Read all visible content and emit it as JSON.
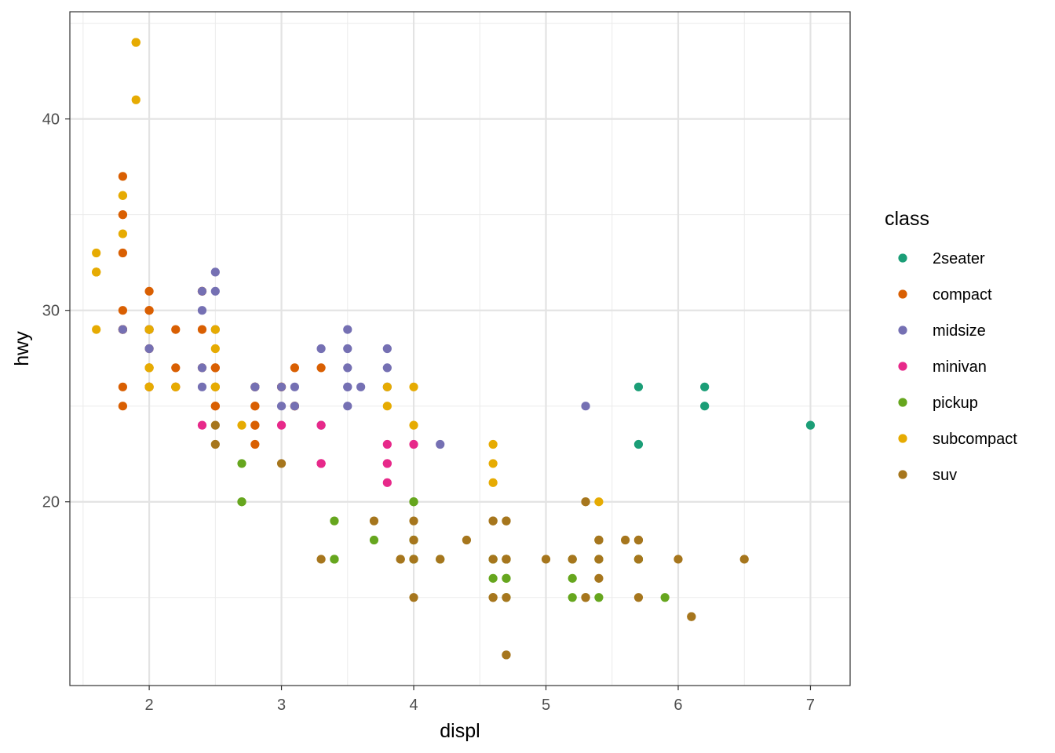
{
  "chart_data": {
    "type": "scatter",
    "xlabel": "displ",
    "ylabel": "hwy",
    "xlim": [
      1.4,
      7.3
    ],
    "ylim": [
      10.4,
      45.6
    ],
    "x_ticks": [
      2,
      3,
      4,
      5,
      6,
      7
    ],
    "y_ticks": [
      20,
      30,
      40
    ],
    "grid": true,
    "legend": {
      "title": "class",
      "position": "right"
    },
    "series": [
      {
        "name": "2seater",
        "color": "#1B9E77",
        "points": [
          [
            5.7,
            26
          ],
          [
            5.7,
            23
          ],
          [
            6.2,
            26
          ],
          [
            6.2,
            25
          ],
          [
            7.0,
            24
          ]
        ]
      },
      {
        "name": "compact",
        "color": "#D95F02",
        "points": [
          [
            1.8,
            29
          ],
          [
            1.8,
            29
          ],
          [
            2.0,
            31
          ],
          [
            2.0,
            30
          ],
          [
            2.8,
            26
          ],
          [
            2.8,
            26
          ],
          [
            3.1,
            27
          ],
          [
            1.8,
            26
          ],
          [
            1.8,
            25
          ],
          [
            2.0,
            28
          ],
          [
            2.0,
            27
          ],
          [
            2.8,
            25
          ],
          [
            2.8,
            25
          ],
          [
            3.1,
            25
          ],
          [
            3.1,
            25
          ],
          [
            2.2,
            27
          ],
          [
            2.2,
            29
          ],
          [
            2.4,
            31
          ],
          [
            2.4,
            31
          ],
          [
            3.0,
            26
          ],
          [
            3.0,
            26
          ],
          [
            3.3,
            27
          ],
          [
            1.8,
            35
          ],
          [
            1.8,
            37
          ],
          [
            1.8,
            35
          ],
          [
            1.8,
            29
          ],
          [
            2.0,
            29
          ],
          [
            2.4,
            27
          ],
          [
            2.5,
            27
          ],
          [
            2.5,
            25
          ],
          [
            2.8,
            26
          ],
          [
            2.8,
            23
          ],
          [
            2.0,
            26
          ],
          [
            2.0,
            29
          ],
          [
            2.8,
            24
          ],
          [
            1.8,
            33
          ],
          [
            2.4,
            29
          ],
          [
            2.5,
            25
          ],
          [
            2.5,
            27
          ],
          [
            2.8,
            24
          ],
          [
            2.2,
            26
          ],
          [
            2.2,
            26
          ],
          [
            2.0,
            29
          ],
          [
            2.0,
            26
          ],
          [
            1.8,
            30
          ],
          [
            2.0,
            30
          ],
          [
            2.0,
            26
          ]
        ]
      },
      {
        "name": "midsize",
        "color": "#7570B3",
        "points": [
          [
            2.8,
            26
          ],
          [
            3.1,
            25
          ],
          [
            4.2,
            23
          ],
          [
            2.4,
            30
          ],
          [
            2.4,
            31
          ],
          [
            2.5,
            32
          ],
          [
            2.5,
            26
          ],
          [
            3.5,
            29
          ],
          [
            3.5,
            26
          ],
          [
            3.6,
            26
          ],
          [
            3.8,
            26
          ],
          [
            3.8,
            28
          ],
          [
            3.8,
            27
          ],
          [
            2.5,
            29
          ],
          [
            2.4,
            26
          ],
          [
            2.4,
            27
          ],
          [
            3.3,
            28
          ],
          [
            3.3,
            24
          ],
          [
            3.5,
            28
          ],
          [
            3.5,
            27
          ],
          [
            5.3,
            25
          ],
          [
            2.5,
            31
          ],
          [
            3.0,
            25
          ],
          [
            3.0,
            26
          ],
          [
            3.5,
            25
          ],
          [
            3.5,
            26
          ],
          [
            1.8,
            29
          ],
          [
            2.0,
            29
          ],
          [
            2.0,
            28
          ],
          [
            2.8,
            26
          ],
          [
            3.1,
            26
          ]
        ]
      },
      {
        "name": "minivan",
        "color": "#E7298A",
        "points": [
          [
            2.4,
            24
          ],
          [
            3.0,
            24
          ],
          [
            3.3,
            22
          ],
          [
            3.3,
            22
          ],
          [
            3.3,
            24
          ],
          [
            3.8,
            22
          ],
          [
            3.8,
            21
          ],
          [
            3.8,
            23
          ],
          [
            4.0,
            23
          ],
          [
            3.3,
            22
          ],
          [
            3.8,
            22
          ]
        ]
      },
      {
        "name": "pickup",
        "color": "#66A61E",
        "points": [
          [
            2.7,
            20
          ],
          [
            2.7,
            22
          ],
          [
            2.7,
            20
          ],
          [
            3.4,
            19
          ],
          [
            3.4,
            17
          ],
          [
            4.0,
            17
          ],
          [
            4.0,
            20
          ],
          [
            4.0,
            18
          ],
          [
            4.6,
            17
          ],
          [
            4.7,
            16
          ],
          [
            4.7,
            17
          ],
          [
            5.2,
            17
          ],
          [
            5.2,
            15
          ],
          [
            5.7,
            17
          ],
          [
            5.9,
            15
          ],
          [
            4.7,
            15
          ],
          [
            4.7,
            17
          ],
          [
            5.2,
            16
          ],
          [
            3.7,
            18
          ],
          [
            4.2,
            17
          ],
          [
            4.6,
            16
          ],
          [
            5.4,
            15
          ],
          [
            5.4,
            18
          ],
          [
            3.4,
            17
          ],
          [
            4.0,
            20
          ],
          [
            4.0,
            17
          ],
          [
            4.6,
            17
          ],
          [
            5.4,
            17
          ],
          [
            4.0,
            18
          ],
          [
            4.0,
            20
          ],
          [
            4.7,
            17
          ],
          [
            4.7,
            16
          ],
          [
            5.7,
            17
          ]
        ]
      },
      {
        "name": "subcompact",
        "color": "#E6AB02",
        "points": [
          [
            3.8,
            26
          ],
          [
            3.8,
            25
          ],
          [
            4.0,
            26
          ],
          [
            4.0,
            24
          ],
          [
            4.6,
            21
          ],
          [
            4.6,
            22
          ],
          [
            4.6,
            23
          ],
          [
            5.4,
            20
          ],
          [
            1.6,
            33
          ],
          [
            1.6,
            32
          ],
          [
            1.6,
            32
          ],
          [
            1.6,
            29
          ],
          [
            1.6,
            32
          ],
          [
            1.8,
            34
          ],
          [
            1.8,
            36
          ],
          [
            1.8,
            36
          ],
          [
            2.0,
            29
          ],
          [
            2.0,
            26
          ],
          [
            2.0,
            27
          ],
          [
            1.9,
            44
          ],
          [
            1.9,
            41
          ],
          [
            1.9,
            44
          ],
          [
            2.5,
            26
          ],
          [
            2.5,
            26
          ],
          [
            2.5,
            28
          ],
          [
            2.5,
            29
          ],
          [
            2.7,
            24
          ],
          [
            2.2,
            26
          ],
          [
            2.5,
            26
          ],
          [
            2.0,
            27
          ],
          [
            1.9,
            44
          ]
        ]
      },
      {
        "name": "suv",
        "color": "#A6761D",
        "points": [
          [
            5.3,
            20
          ],
          [
            5.3,
            15
          ],
          [
            5.3,
            20
          ],
          [
            5.7,
            17
          ],
          [
            6.5,
            17
          ],
          [
            4.7,
            17
          ],
          [
            4.7,
            12
          ],
          [
            4.7,
            12
          ],
          [
            5.7,
            18
          ],
          [
            6.1,
            14
          ],
          [
            5.3,
            15
          ],
          [
            6.0,
            17
          ],
          [
            6.1,
            14
          ],
          [
            3.9,
            17
          ],
          [
            4.7,
            19
          ],
          [
            4.7,
            17
          ],
          [
            5.2,
            17
          ],
          [
            5.7,
            18
          ],
          [
            4.0,
            17
          ],
          [
            4.0,
            15
          ],
          [
            4.7,
            17
          ],
          [
            5.4,
            16
          ],
          [
            5.4,
            18
          ],
          [
            4.6,
            19
          ],
          [
            5.0,
            17
          ],
          [
            4.2,
            17
          ],
          [
            4.6,
            17
          ],
          [
            5.4,
            17
          ],
          [
            5.6,
            18
          ],
          [
            4.0,
            19
          ],
          [
            4.7,
            17
          ],
          [
            4.7,
            19
          ],
          [
            4.6,
            15
          ],
          [
            5.7,
            15
          ],
          [
            5.4,
            18
          ],
          [
            3.3,
            17
          ],
          [
            4.0,
            18
          ],
          [
            4.4,
            18
          ],
          [
            4.6,
            19
          ],
          [
            3.7,
            19
          ],
          [
            3.0,
            22
          ],
          [
            2.5,
            23
          ],
          [
            2.5,
            24
          ],
          [
            3.9,
            17
          ],
          [
            4.6,
            15
          ],
          [
            4.7,
            15
          ]
        ]
      }
    ]
  }
}
